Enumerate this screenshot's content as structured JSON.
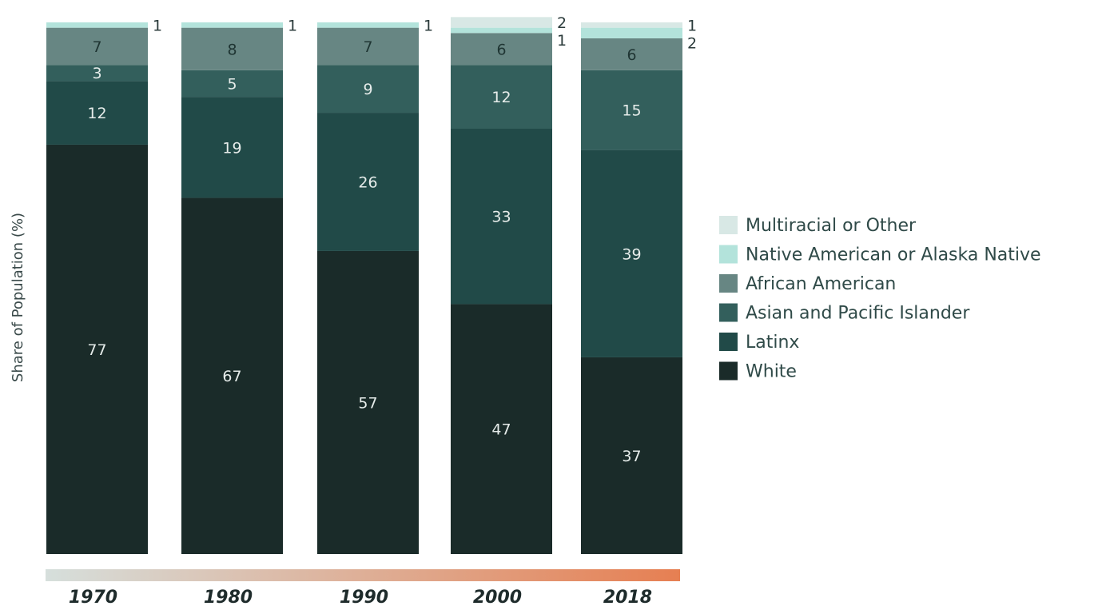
{
  "chart_data": {
    "type": "bar",
    "stacked": true,
    "ylabel": "Share of Population (%)",
    "ylim": [
      0,
      100
    ],
    "categories": [
      "1970",
      "1980",
      "1990",
      "2000",
      "2018"
    ],
    "series": [
      {
        "name": "White",
        "color": "#1a2b29",
        "label_color": "#e6ecea",
        "values": [
          77,
          67,
          57,
          47,
          37
        ]
      },
      {
        "name": "Latinx",
        "color": "#214a48",
        "label_color": "#e6ecea",
        "values": [
          12,
          19,
          26,
          33,
          39
        ]
      },
      {
        "name": "Asian and Pacific Islander",
        "color": "#335f5c",
        "label_color": "#e6ecea",
        "values": [
          3,
          5,
          9,
          12,
          15
        ]
      },
      {
        "name": "African American",
        "color": "#678683",
        "label_color": "#1f3533",
        "values": [
          7,
          8,
          7,
          6,
          6
        ]
      },
      {
        "name": "Native American or Alaska Native",
        "color": "#b3e3db",
        "label_color": "#2b3b3b",
        "values": [
          1,
          1,
          1,
          1,
          2
        ]
      },
      {
        "name": "Multiracial or Other",
        "color": "#d8e8e5",
        "label_color": "#2b3b3b",
        "values": [
          0,
          0,
          0,
          2,
          1
        ]
      }
    ],
    "legend_position": "right",
    "legend_order": [
      "Multiracial or Other",
      "Native American or Alaska Native",
      "African American",
      "Asian and Pacific Islander",
      "Latinx",
      "White"
    ],
    "timeline_gradient": [
      "#d6dfdc",
      "#e67f52"
    ],
    "grid": false
  }
}
